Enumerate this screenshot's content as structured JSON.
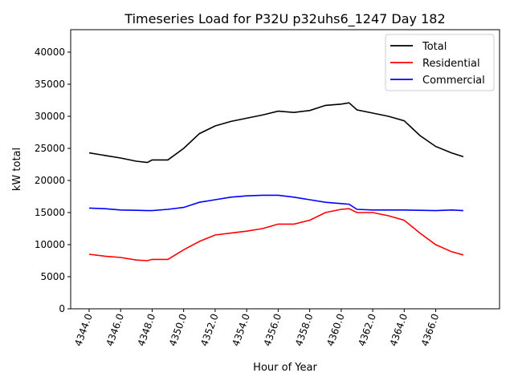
{
  "chart_data": {
    "type": "line",
    "title": "Timeseries Load for P32U p32uhs6_1247  Day 182",
    "xlabel": "Hour of Year",
    "ylabel": "kW total",
    "xlim": [
      4342.83,
      4370.05
    ],
    "ylim": [
      0,
      43500
    ],
    "grid": false,
    "legend_position": "top-right",
    "xticks": [
      4344,
      4346,
      4348,
      4350,
      4352,
      4354,
      4356,
      4358,
      4360,
      4362,
      4364,
      4366
    ],
    "xtick_labels": [
      "4344.0",
      "4346.0",
      "4348.0",
      "4350.0",
      "4352.0",
      "4354.0",
      "4356.0",
      "4358.0",
      "4360.0",
      "4362.0",
      "4364.0",
      "4366.0"
    ],
    "yticks": [
      0,
      5000,
      10000,
      15000,
      20000,
      25000,
      30000,
      35000,
      40000
    ],
    "ytick_labels": [
      "0",
      "5000",
      "10000",
      "15000",
      "20000",
      "25000",
      "30000",
      "35000",
      "40000"
    ],
    "x": [
      4344,
      4345,
      4346,
      4347,
      4347.7,
      4348,
      4349,
      4350,
      4351,
      4352,
      4353,
      4354,
      4355,
      4356,
      4357,
      4358,
      4359,
      4360,
      4360.5,
      4361,
      4362,
      4363,
      4364,
      4365,
      4366,
      4367,
      4367.75
    ],
    "series": [
      {
        "name": "Total",
        "color": "#000000",
        "values": [
          24300,
          23900,
          23500,
          23000,
          22800,
          23200,
          23200,
          25000,
          27300,
          28500,
          29200,
          29700,
          30200,
          30800,
          30600,
          30900,
          31700,
          31900,
          32100,
          31000,
          30500,
          30000,
          29300,
          27000,
          25300,
          24300,
          23700
        ]
      },
      {
        "name": "Residential",
        "color": "#ff0000",
        "values": [
          8500,
          8200,
          8000,
          7600,
          7500,
          7700,
          7700,
          9200,
          10500,
          11500,
          11800,
          12100,
          12500,
          13200,
          13200,
          13800,
          15000,
          15500,
          15600,
          15000,
          15000,
          14500,
          13800,
          11800,
          10000,
          8900,
          8400
        ]
      },
      {
        "name": "Commercial",
        "color": "#0000ff",
        "values": [
          15700,
          15600,
          15400,
          15350,
          15300,
          15300,
          15500,
          15800,
          16600,
          17000,
          17400,
          17600,
          17700,
          17700,
          17400,
          17000,
          16600,
          16400,
          16300,
          15500,
          15400,
          15400,
          15400,
          15350,
          15300,
          15400,
          15300
        ]
      }
    ]
  }
}
